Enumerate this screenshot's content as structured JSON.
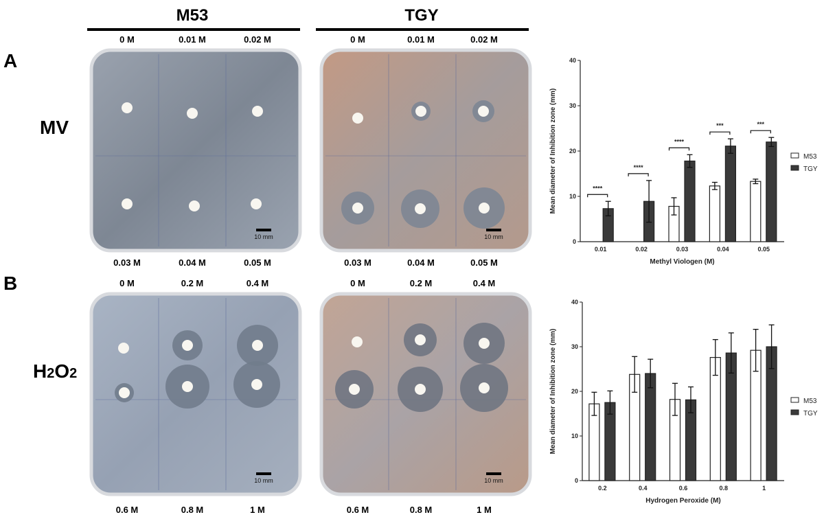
{
  "columns": {
    "left": "M53",
    "right": "TGY"
  },
  "panels": {
    "A": {
      "label": "A",
      "row_label": "MV",
      "top_concentrations": [
        "0 M",
        "0.01 M",
        "0.02 M"
      ],
      "bottom_concentrations": [
        "0.03 M",
        "0.04 M",
        "0.05 M"
      ],
      "scale_bar": "10 mm"
    },
    "B": {
      "label": "B",
      "row_label_main": "H",
      "row_label_sub1": "2",
      "row_label_mid": "O",
      "row_label_sub2": "2",
      "top_concentrations": [
        "0 M",
        "0.2 M",
        "0.4 M"
      ],
      "bottom_concentrations": [
        "0.6 M",
        "0.8 M",
        "1 M"
      ],
      "scale_bar": "10 mm"
    }
  },
  "colors": {
    "M53": "#ffffff",
    "TGY": "#3a3a3a",
    "m53_plate": "#8f98a6",
    "tgy_plate": "#b39a8c"
  },
  "chart_data": [
    {
      "type": "bar",
      "xlabel": "Methyl  Viologen (M)",
      "ylabel": "Mean diameter of Inhibition zone (mm)",
      "ylim": [
        0,
        40
      ],
      "yticks": [
        "0",
        "10",
        "20",
        "30",
        "40"
      ],
      "categories": [
        "0.01",
        "0.02",
        "0.03",
        "0.04",
        "0.05"
      ],
      "legend_position": "right",
      "series": [
        {
          "name": "M53",
          "values": [
            0,
            0,
            7.8,
            12.3,
            13.3
          ],
          "errors": [
            0,
            0,
            1.9,
            0.8,
            0.5
          ]
        },
        {
          "name": "TGY",
          "values": [
            7.3,
            8.9,
            17.8,
            21.1,
            22.0
          ],
          "errors": [
            1.6,
            4.6,
            1.4,
            1.6,
            1.0
          ]
        }
      ],
      "significance": [
        "****",
        "****",
        "****",
        "***",
        "***"
      ]
    },
    {
      "type": "bar",
      "xlabel": "Hydrogen Peroxide (M)",
      "ylabel": "Mean diameter of Inhibition zone (mm)",
      "ylim": [
        0,
        40
      ],
      "yticks": [
        "0",
        "10",
        "20",
        "30",
        "40"
      ],
      "categories": [
        "0.2",
        "0.4",
        "0.6",
        "0.8",
        "1"
      ],
      "legend_position": "right",
      "series": [
        {
          "name": "M53",
          "values": [
            17.2,
            23.8,
            18.2,
            27.6,
            29.2
          ],
          "errors": [
            2.6,
            4.0,
            3.6,
            4.0,
            4.7
          ]
        },
        {
          "name": "TGY",
          "values": [
            17.5,
            24.0,
            18.1,
            28.6,
            30.0
          ],
          "errors": [
            2.6,
            3.2,
            2.9,
            4.5,
            4.9
          ]
        }
      ],
      "significance": []
    }
  ]
}
